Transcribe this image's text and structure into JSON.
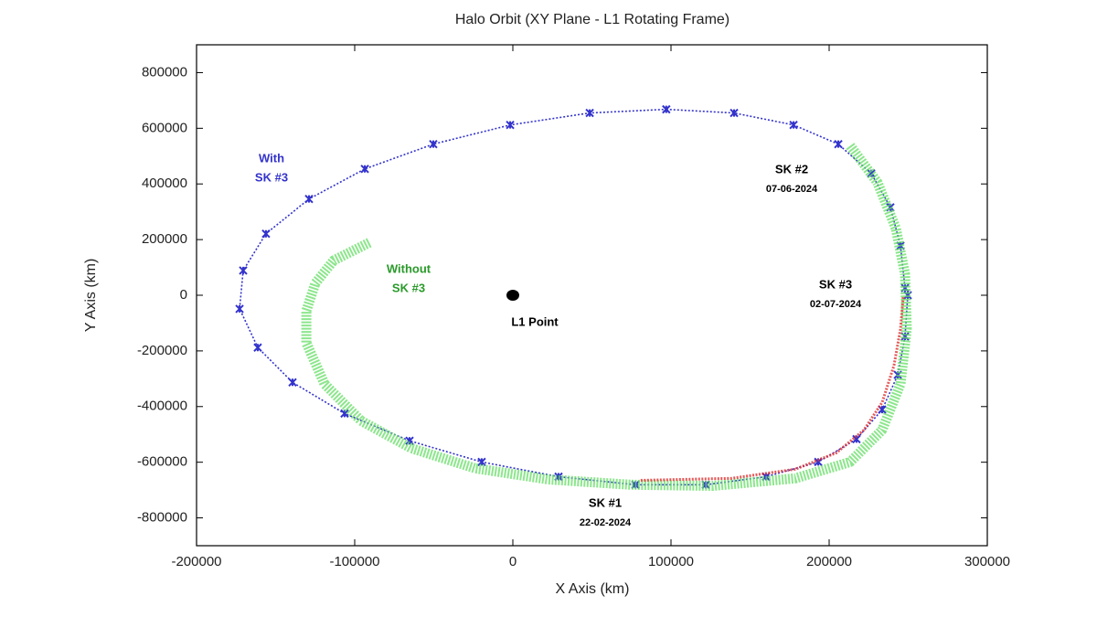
{
  "chart_data": {
    "type": "line",
    "title": "Halo Orbit (XY Plane - L1 Rotating Frame)",
    "x_label": "X Axis (km)",
    "y_label": "Y Axis (km)",
    "xlim": [
      -200000,
      300000
    ],
    "xticks": [
      -200000,
      -100000,
      0,
      100000,
      200000,
      300000
    ],
    "ylim": [
      -900000,
      900000
    ],
    "yticks": [
      -800000,
      -600000,
      -400000,
      -200000,
      0,
      200000,
      400000,
      600000,
      800000
    ],
    "grid": false,
    "series": [
      {
        "color": "#3333cc",
        "closed": true,
        "markers": true,
        "x": [
          97000,
          139900,
          177500,
          205800,
          226600,
          238700,
          245100,
          248000,
          249700,
          248000,
          243400,
          233500,
          217300,
          193100,
          160100,
          122000,
          77500,
          28900,
          -19700,
          -65300,
          -106400,
          -139300,
          -161300,
          -172800,
          -170500,
          -156100,
          -128900,
          -93600,
          -50300,
          -1700,
          48600
        ],
        "y": [
          668000,
          655000,
          612000,
          543000,
          438000,
          316000,
          178000,
          26000,
          0,
          -148000,
          -286000,
          -411000,
          -517000,
          -599000,
          -652000,
          -681000,
          -681000,
          -652000,
          -599000,
          -523000,
          -425000,
          -313000,
          -188000,
          -49000,
          89000,
          221000,
          346000,
          454000,
          543000,
          612000,
          655000
        ]
      },
      {
        "color": "#66dd66",
        "x": [
          213300,
          230600,
          242200,
          248000,
          249100,
          245100,
          233500,
          213300,
          178600,
          126600,
          74600,
          22500,
          -23700,
          -64200,
          -96000,
          -119100,
          -130600,
          -130600,
          -124900,
          -113300,
          -90200
        ],
        "y": [
          537000,
          405000,
          240000,
          76000,
          -122000,
          -319000,
          -484000,
          -599000,
          -658000,
          -685000,
          -681000,
          -662000,
          -622000,
          -550000,
          -451000,
          -319000,
          -171000,
          -56000,
          43000,
          125000,
          191000
        ]
      },
      {
        "color": "#e03030",
        "x": [
          246800,
          245100,
          241000,
          233500,
          222000,
          204600,
          178600,
          138200,
          80300
        ],
        "y": [
          -7000,
          -122000,
          -253000,
          -385000,
          -484000,
          -566000,
          -625000,
          -658000,
          -665000
        ]
      },
      {
        "color": "#000000",
        "dot": true,
        "x": [
          0
        ],
        "y": [
          0
        ]
      }
    ],
    "annotations": [
      {
        "lines": [
          "With",
          "SK #3"
        ],
        "color": "#3333cc"
      },
      {
        "lines": [
          "Without",
          "SK #3"
        ],
        "color": "#2a9a2a"
      },
      {
        "lines": [
          "L1 Point"
        ],
        "color": "#000000"
      },
      {
        "lines": [
          "SK #2",
          "07-06-2024"
        ],
        "color": "#000000"
      },
      {
        "lines": [
          "SK #3",
          "02-07-2024"
        ],
        "color": "#000000"
      },
      {
        "lines": [
          "SK #1",
          "22-02-2024"
        ],
        "color": "#000000"
      }
    ]
  }
}
